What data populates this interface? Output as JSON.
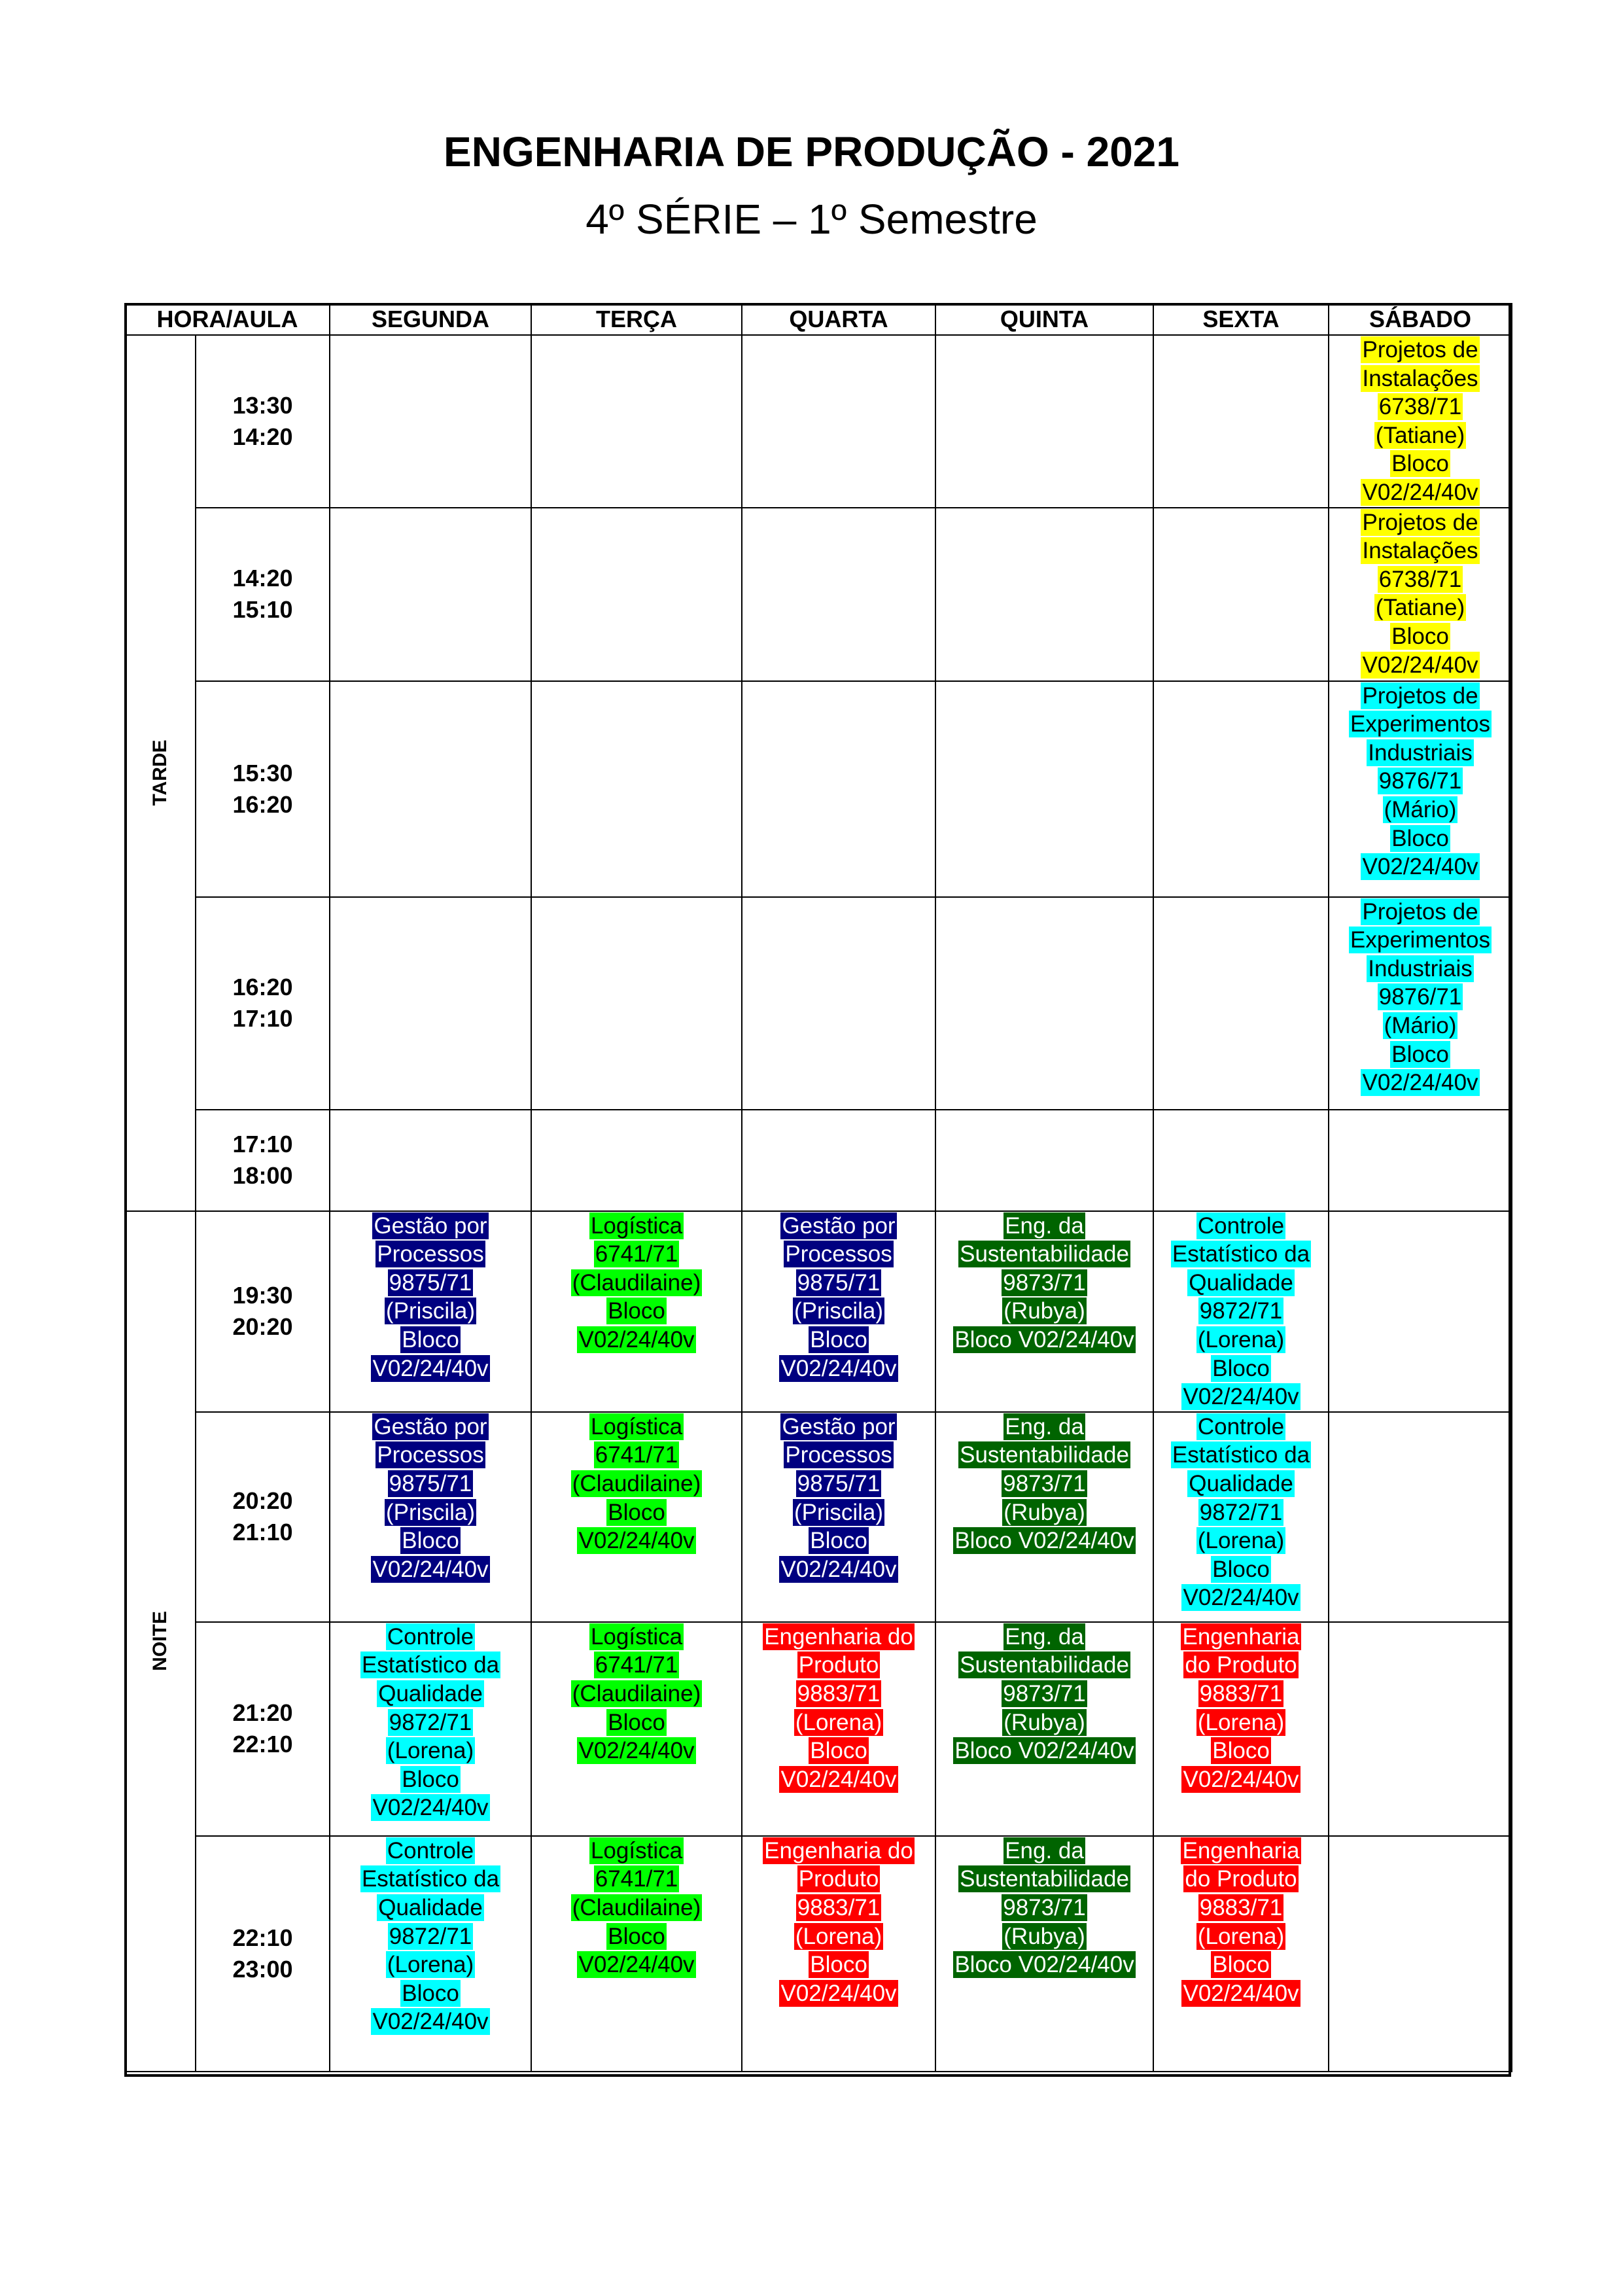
{
  "title": "ENGENHARIA DE PRODUÇÃO - 2021",
  "subtitle": "4º SÉRIE – 1º Semestre",
  "headers": [
    "HORA/AULA",
    "SEGUNDA",
    "TERÇA",
    "QUARTA",
    "QUINTA",
    "SEXTA",
    "SÁBADO"
  ],
  "periods": {
    "afternoon": "TARDE",
    "night": "NOITE"
  },
  "colors": {
    "navy": "#000080",
    "lime": "#00ff00",
    "dark_green": "#006400",
    "cyan": "#00ffff",
    "red": "#ff0000",
    "yellow": "#ffff00"
  },
  "rows": [
    {
      "start": "13:30",
      "end": "14:20",
      "cells": [
        null,
        null,
        null,
        null,
        null,
        {
          "color": "yellow",
          "lines": [
            "Projetos de",
            "Instalações",
            "6738/71",
            "(Tatiane)",
            "Bloco",
            "V02/24/40v"
          ]
        }
      ]
    },
    {
      "start": "14:20",
      "end": "15:10",
      "cells": [
        null,
        null,
        null,
        null,
        null,
        {
          "color": "yellow",
          "lines": [
            "Projetos de",
            "Instalações",
            "6738/71",
            "(Tatiane)",
            "Bloco",
            "V02/24/40v"
          ]
        }
      ]
    },
    {
      "start": "15:30",
      "end": "16:20",
      "cells": [
        null,
        null,
        null,
        null,
        null,
        {
          "color": "cyan",
          "lines": [
            "Projetos de",
            "Experimentos",
            "Industriais",
            "9876/71",
            "(Mário)",
            "Bloco",
            "V02/24/40v"
          ]
        }
      ]
    },
    {
      "start": "16:20",
      "end": "17:10",
      "cells": [
        null,
        null,
        null,
        null,
        null,
        {
          "color": "cyan",
          "lines": [
            "Projetos de",
            "Experimentos",
            "Industriais",
            "9876/71",
            "(Mário)",
            "Bloco",
            "V02/24/40v"
          ]
        }
      ]
    },
    {
      "start": "17:10",
      "end": "18:00",
      "cells": [
        null,
        null,
        null,
        null,
        null,
        null
      ]
    },
    {
      "start": "19:30",
      "end": "20:20",
      "cells": [
        {
          "color": "navy",
          "lines": [
            "Gestão por",
            "Processos",
            "9875/71",
            "(Priscila)",
            "Bloco",
            "V02/24/40v"
          ]
        },
        {
          "color": "lime",
          "lines": [
            "Logística",
            "6741/71",
            "(Claudilaine)",
            "Bloco",
            "V02/24/40v"
          ]
        },
        {
          "color": "navy",
          "lines": [
            "Gestão por",
            "Processos",
            "9875/71",
            "(Priscila)",
            "Bloco",
            "V02/24/40v"
          ]
        },
        {
          "color": "dark_green",
          "lines": [
            "Eng. da",
            "Sustentabilidade",
            "9873/71",
            "(Rubya)",
            "Bloco V02/24/40v"
          ]
        },
        {
          "color": "cyan",
          "lines": [
            "Controle",
            "Estatístico da",
            "Qualidade",
            "9872/71",
            "(Lorena)",
            "Bloco",
            "V02/24/40v"
          ]
        },
        null
      ]
    },
    {
      "start": "20:20",
      "end": "21:10",
      "cells": [
        {
          "color": "navy",
          "lines": [
            "Gestão por",
            "Processos",
            "9875/71",
            "(Priscila)",
            "Bloco",
            "V02/24/40v"
          ]
        },
        {
          "color": "lime",
          "lines": [
            "Logística",
            "6741/71",
            "(Claudilaine)",
            "Bloco",
            "V02/24/40v"
          ]
        },
        {
          "color": "navy",
          "lines": [
            "Gestão por",
            "Processos",
            "9875/71",
            "(Priscila)",
            "Bloco",
            "V02/24/40v"
          ]
        },
        {
          "color": "dark_green",
          "lines": [
            "Eng. da",
            "Sustentabilidade",
            "9873/71",
            "(Rubya)",
            "Bloco V02/24/40v"
          ]
        },
        {
          "color": "cyan",
          "lines": [
            "Controle",
            "Estatístico da",
            "Qualidade",
            "9872/71",
            "(Lorena)",
            "Bloco",
            "V02/24/40v"
          ]
        },
        null
      ]
    },
    {
      "start": "21:20",
      "end": "22:10",
      "cells": [
        {
          "color": "cyan",
          "lines": [
            "Controle",
            "Estatístico da",
            "Qualidade",
            "9872/71",
            "(Lorena)",
            "Bloco",
            "V02/24/40v"
          ]
        },
        {
          "color": "lime",
          "lines": [
            "Logística",
            "6741/71",
            "(Claudilaine)",
            "Bloco",
            "V02/24/40v"
          ]
        },
        {
          "color": "red",
          "lines": [
            "Engenharia do",
            "Produto",
            "9883/71",
            "(Lorena)",
            "Bloco",
            "V02/24/40v"
          ]
        },
        {
          "color": "dark_green",
          "lines": [
            "Eng. da",
            "Sustentabilidade",
            "9873/71",
            "(Rubya)",
            "Bloco V02/24/40v"
          ]
        },
        {
          "color": "red",
          "lines": [
            "Engenharia",
            "do Produto",
            "9883/71",
            "(Lorena)",
            "Bloco",
            "V02/24/40v"
          ]
        },
        null
      ]
    },
    {
      "start": "22:10",
      "end": "23:00",
      "cells": [
        {
          "color": "cyan",
          "lines": [
            "Controle",
            "Estatístico da",
            "Qualidade",
            "9872/71",
            "(Lorena)",
            "Bloco",
            "V02/24/40v"
          ]
        },
        {
          "color": "lime",
          "lines": [
            "Logística",
            "6741/71",
            "(Claudilaine)",
            "Bloco",
            "V02/24/40v"
          ]
        },
        {
          "color": "red",
          "lines": [
            "Engenharia do",
            "Produto",
            "9883/71",
            "(Lorena)",
            "Bloco",
            "V02/24/40v"
          ]
        },
        {
          "color": "dark_green",
          "lines": [
            "Eng. da",
            "Sustentabilidade",
            "9873/71",
            "(Rubya)",
            "Bloco V02/24/40v"
          ]
        },
        {
          "color": "red",
          "lines": [
            "Engenharia",
            "do Produto",
            "9883/71",
            "(Lorena)",
            "Bloco",
            "V02/24/40v"
          ]
        },
        null
      ]
    }
  ]
}
